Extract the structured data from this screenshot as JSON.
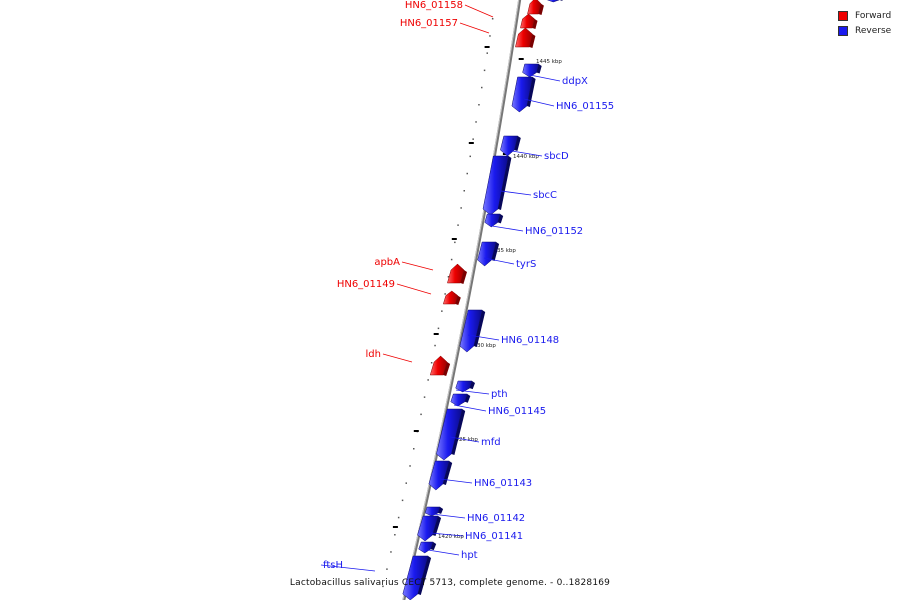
{
  "legend": {
    "forward_label": "Forward",
    "reverse_label": "Reverse",
    "forward_color": "#ee0000",
    "reverse_color": "#1a1aee"
  },
  "caption": "Lactobacillus salivarius CECT 5713, complete genome. - 0..1828169",
  "colors": {
    "forward": "#ee0000",
    "reverse": "#1a1aee",
    "backbone": "#777777",
    "tick": "#000000"
  },
  "scale_labels": [
    "1445 kbp",
    "1440 kbp",
    "1435 kbp",
    "1430 kbp",
    "1425 kbp",
    "1420 kbp"
  ],
  "genes": [
    {
      "name": "HN6_01158",
      "strand": "forward"
    },
    {
      "name": "HN6_01157",
      "strand": "forward"
    },
    {
      "name": "ddpX",
      "strand": "reverse"
    },
    {
      "name": "HN6_01155",
      "strand": "reverse"
    },
    {
      "name": "sbcD",
      "strand": "reverse"
    },
    {
      "name": "sbcC",
      "strand": "reverse"
    },
    {
      "name": "HN6_01152",
      "strand": "reverse"
    },
    {
      "name": "apbA",
      "strand": "forward"
    },
    {
      "name": "tyrS",
      "strand": "reverse"
    },
    {
      "name": "HN6_01149",
      "strand": "forward"
    },
    {
      "name": "HN6_01148",
      "strand": "reverse"
    },
    {
      "name": "ldh",
      "strand": "forward"
    },
    {
      "name": "pth",
      "strand": "reverse"
    },
    {
      "name": "HN6_01145",
      "strand": "reverse"
    },
    {
      "name": "mfd",
      "strand": "reverse"
    },
    {
      "name": "HN6_01143",
      "strand": "reverse"
    },
    {
      "name": "HN6_01142",
      "strand": "reverse"
    },
    {
      "name": "HN6_01141",
      "strand": "reverse"
    },
    {
      "name": "hpt",
      "strand": "reverse"
    },
    {
      "name": "ftsH",
      "strand": "reverse"
    }
  ]
}
